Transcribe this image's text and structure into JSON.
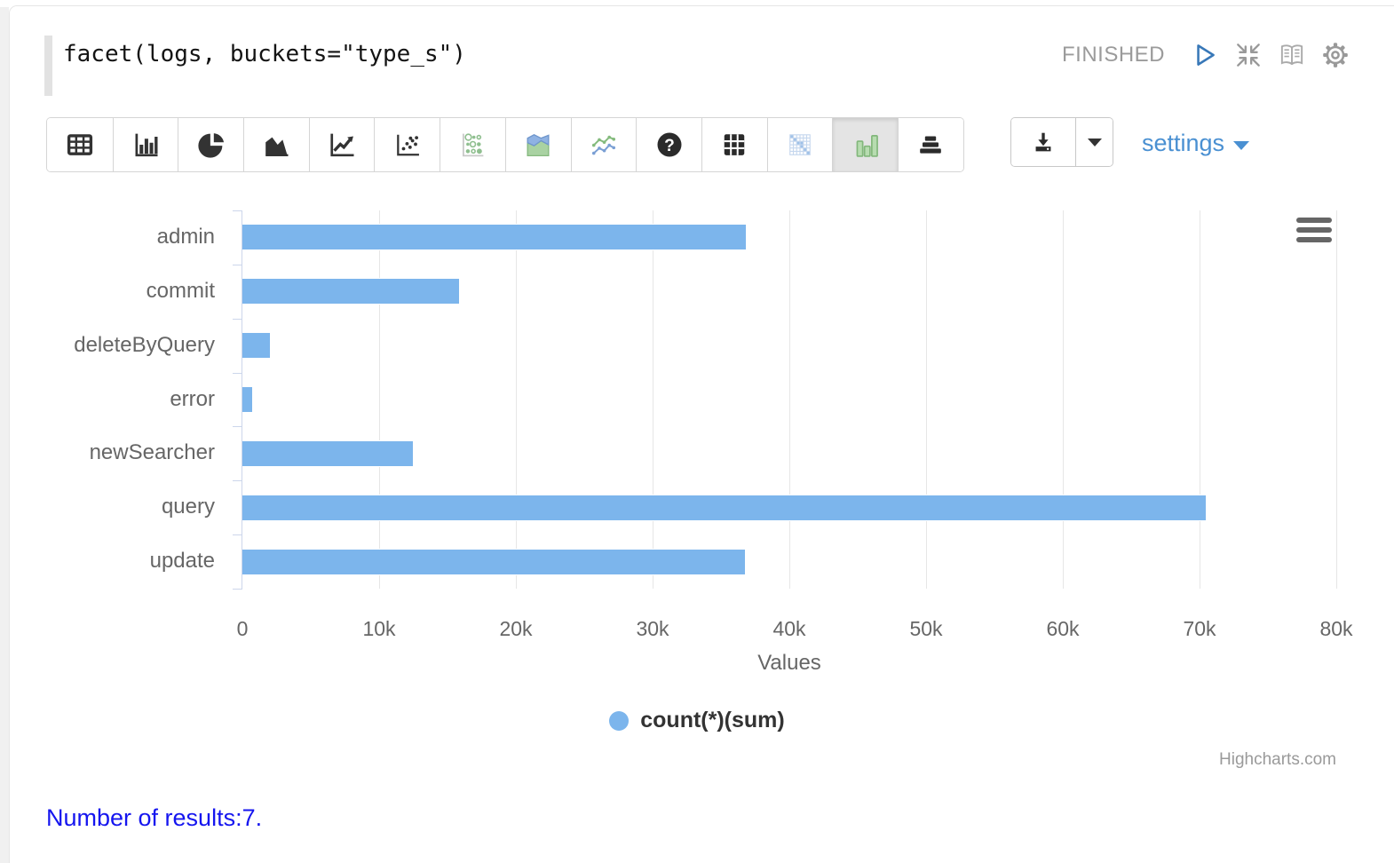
{
  "paragraph": {
    "query": "facet(logs, buckets=\"type_s\")",
    "status": "FINISHED",
    "control_icons": [
      "play-icon",
      "collapse-icon",
      "book-icon",
      "gear-icon"
    ]
  },
  "toolbar": {
    "buttons": [
      "table",
      "multi-bar-chart",
      "pie-chart",
      "area-chart",
      "line-chart",
      "scatter-chart",
      "bubble-matrix-chart",
      "stacked-area-chart",
      "multi-line-chart",
      "help",
      "pivot-table",
      "heatmap",
      "column-chart",
      "horizontal-bar-chart"
    ],
    "selected_index": 12,
    "download_icon": "download-icon",
    "settings_label": "settings"
  },
  "chart_data": {
    "type": "bar",
    "orientation": "horizontal",
    "categories": [
      "admin",
      "commit",
      "deleteByQuery",
      "error",
      "newSearcher",
      "query",
      "update"
    ],
    "series": [
      {
        "name": "count(*)(sum)",
        "color": "#7cb5ec",
        "values": [
          36900,
          15900,
          2100,
          780,
          12500,
          70500,
          36800
        ]
      }
    ],
    "xlabel": "Values",
    "ylabel": "",
    "xlim": [
      0,
      80000
    ],
    "x_ticks": [
      "0",
      "10k",
      "20k",
      "30k",
      "40k",
      "50k",
      "60k",
      "70k",
      "80k"
    ],
    "grid": true,
    "legend_position": "bottom",
    "credit": "Highcharts.com",
    "menu_icon": "hamburger-menu-icon"
  },
  "footer": {
    "results_text": "Number of results:7."
  }
}
